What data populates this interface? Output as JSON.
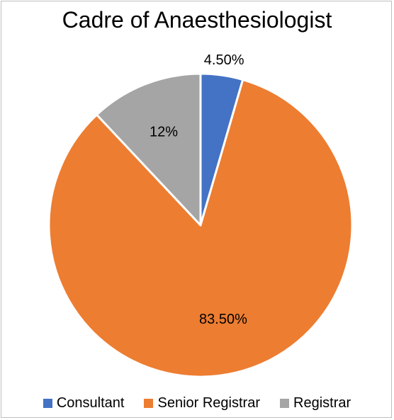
{
  "chart_data": {
    "type": "pie",
    "title": "Cadre of Anaesthesiologist",
    "categories": [
      "Consultant",
      "Senior Registrar",
      "Registrar"
    ],
    "values": [
      4.5,
      83.5,
      12
    ],
    "labels": [
      "4.50%",
      "83.50%",
      "12%"
    ],
    "colors": [
      "#4472c4",
      "#ed7d31",
      "#a5a5a5"
    ],
    "legend": "bottom"
  }
}
